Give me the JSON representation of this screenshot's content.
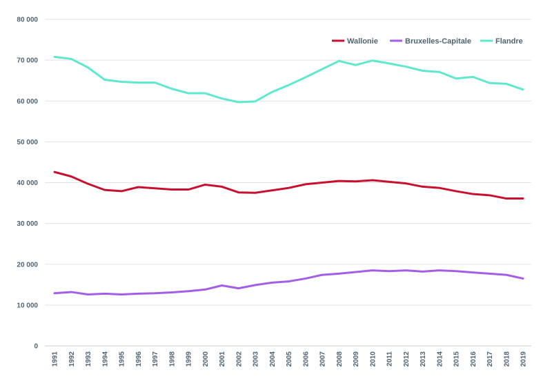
{
  "chart_data": {
    "type": "line",
    "title": "",
    "xlabel": "",
    "ylabel": "",
    "ylim": [
      0,
      80000
    ],
    "yticks": [
      0,
      10000,
      20000,
      30000,
      40000,
      50000,
      60000,
      70000,
      80000
    ],
    "ytick_labels": [
      "0",
      "10 000",
      "20 000",
      "30 000",
      "40 000",
      "50 000",
      "60 000",
      "70 000",
      "80 000"
    ],
    "grid": true,
    "legend_position": "top-right",
    "x": [
      "1991",
      "1992",
      "1993",
      "1994",
      "1995",
      "1996",
      "1997",
      "1998",
      "1999",
      "2000",
      "2001",
      "2002",
      "2003",
      "2004",
      "2005",
      "2006",
      "2007",
      "2008",
      "2009",
      "2010",
      "2011",
      "2012",
      "2013",
      "2014",
      "2015",
      "2016",
      "2017",
      "2018",
      "2019"
    ],
    "series": [
      {
        "name": "Wallonie",
        "color": "#c8102e",
        "values": [
          42600,
          41500,
          39700,
          38200,
          37900,
          38900,
          38600,
          38300,
          38300,
          39500,
          39000,
          37600,
          37500,
          38100,
          38700,
          39600,
          40000,
          40400,
          40300,
          40600,
          40200,
          39800,
          39000,
          38700,
          37900,
          37200,
          36900,
          36100,
          36100
        ]
      },
      {
        "name": "Bruxelles-Capitale",
        "color": "#a35de6",
        "values": [
          12900,
          13200,
          12600,
          12800,
          12600,
          12800,
          12900,
          13100,
          13400,
          13800,
          14800,
          14100,
          14900,
          15500,
          15800,
          16500,
          17400,
          17700,
          18100,
          18500,
          18300,
          18500,
          18200,
          18500,
          18300,
          18000,
          17700,
          17400,
          16500
        ]
      },
      {
        "name": "Flandre",
        "color": "#5ee8cf",
        "values": [
          70800,
          70300,
          68200,
          65200,
          64700,
          64500,
          64500,
          63000,
          61900,
          61900,
          60600,
          59700,
          59900,
          62200,
          63900,
          65800,
          67800,
          69800,
          68800,
          69900,
          69200,
          68400,
          67400,
          67100,
          65500,
          65900,
          64400,
          64200,
          62800
        ]
      }
    ]
  }
}
